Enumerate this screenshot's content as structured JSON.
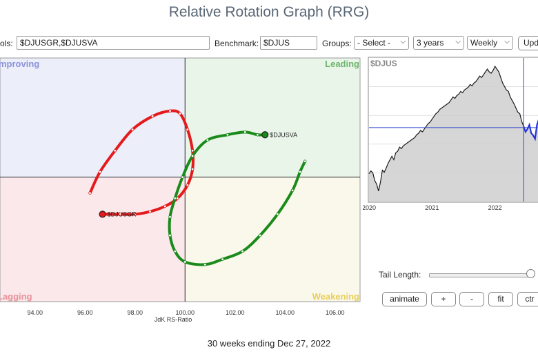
{
  "header": {
    "title": "Relative Rotation Graph (RRG)"
  },
  "toolbar": {
    "symbols_label": "ols:",
    "symbols_value": "$DJUSGR,$DJUSVA",
    "benchmark_label": "Benchmark:",
    "benchmark_value": "$DJUS",
    "groups_label": "Groups:",
    "groups_selected": "- Select -",
    "period_selected": "3 years",
    "frequency_selected": "Weekly",
    "update_label": "Upd"
  },
  "colors": {
    "improving": "#eceefa",
    "leading": "#eaf5ea",
    "lagging": "#fae8ea",
    "weakening": "#faf8ea",
    "growth_tail": "#e41a1c",
    "value_tail": "#1a8a1a",
    "price_line": "#1b1b1b",
    "price_line_recent": "#2233dd",
    "crosshair": "#3344cc"
  },
  "rrg": {
    "quadrants": {
      "improving": "mproving",
      "leading": "Leading",
      "lagging": "Lagging",
      "weakening": "Weakening"
    },
    "xlabel": "JdK RS-Ratio",
    "xticks": [
      "94.00",
      "96.00",
      "98.00",
      "100.00",
      "102.00",
      "104.00",
      "106.00"
    ]
  },
  "chart_data": {
    "type": "scatter",
    "xlabel": "JdK RS-Ratio",
    "xlim": [
      92.6,
      107.0
    ],
    "ylim": [
      95.3,
      104.5
    ],
    "series": [
      {
        "name": "$DJUSGR",
        "points": [
          [
            96.2,
            99.4
          ],
          [
            96.6,
            100.2
          ],
          [
            97.2,
            101.0
          ],
          [
            97.9,
            101.8
          ],
          [
            98.7,
            102.3
          ],
          [
            99.4,
            102.5
          ],
          [
            99.8,
            102.4
          ],
          [
            100.1,
            101.8
          ],
          [
            100.3,
            101.0
          ],
          [
            100.3,
            100.3
          ],
          [
            100.1,
            99.7
          ],
          [
            99.7,
            99.2
          ],
          [
            99.2,
            98.9
          ],
          [
            98.6,
            98.7
          ],
          [
            98.0,
            98.6
          ],
          [
            97.4,
            98.6
          ],
          [
            96.7,
            98.6
          ]
        ]
      },
      {
        "name": "$DJUSVA",
        "points": [
          [
            104.8,
            100.6
          ],
          [
            104.6,
            100.2
          ],
          [
            104.3,
            99.5
          ],
          [
            103.7,
            98.6
          ],
          [
            103.0,
            97.8
          ],
          [
            102.3,
            97.2
          ],
          [
            101.5,
            96.9
          ],
          [
            100.8,
            96.7
          ],
          [
            100.0,
            96.8
          ],
          [
            99.6,
            97.2
          ],
          [
            99.4,
            97.8
          ],
          [
            99.4,
            98.5
          ],
          [
            99.6,
            99.2
          ],
          [
            99.9,
            100.0
          ],
          [
            100.3,
            100.8
          ],
          [
            100.9,
            101.4
          ],
          [
            101.7,
            101.6
          ],
          [
            102.4,
            101.7
          ],
          [
            102.9,
            101.6
          ],
          [
            103.2,
            101.6
          ]
        ]
      }
    ]
  },
  "price": {
    "symbol": "$DJUS",
    "xticks": [
      "2020",
      "2021",
      "2022"
    ],
    "values": [
      40,
      44,
      41,
      30,
      25,
      15,
      28,
      45,
      42,
      48,
      55,
      60,
      65,
      60,
      70,
      72,
      78,
      76,
      80,
      82,
      84,
      86,
      88,
      90,
      92,
      96,
      98,
      102,
      100,
      104,
      108,
      112,
      114,
      118,
      122,
      126,
      128,
      132,
      134,
      136,
      138,
      140,
      142,
      146,
      150,
      148,
      152,
      154,
      158,
      156,
      160,
      162,
      164,
      168,
      166,
      170,
      172,
      176,
      180,
      178,
      182,
      186,
      190,
      186,
      184,
      188,
      194,
      190,
      186,
      178,
      170,
      165,
      160,
      158,
      150,
      145,
      140,
      134,
      128,
      126,
      115,
      108,
      100,
      104,
      110,
      98,
      95,
      90,
      110,
      118,
      125,
      126,
      115,
      110,
      104,
      108,
      100
    ]
  },
  "controls": {
    "tail_length_label": "Tail Length:",
    "animate_label": "animate",
    "plus_label": "+",
    "minus_label": "-",
    "fit_label": "fit",
    "ctr_label": "ctr"
  },
  "footer": {
    "text": "30 weeks ending Dec 27, 2022"
  }
}
